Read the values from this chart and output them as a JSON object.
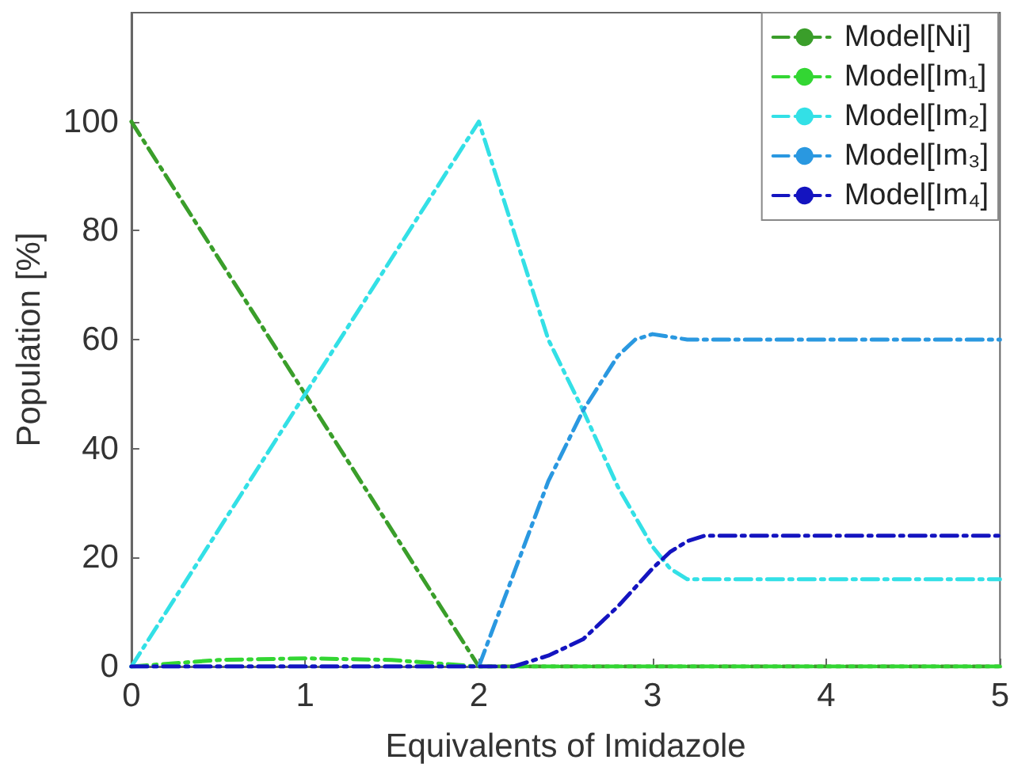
{
  "chart_data": {
    "type": "line",
    "xlabel": "Equivalents of Imidazole",
    "ylabel": "Population [%]",
    "xlim": [
      0,
      5
    ],
    "xticks": [
      0,
      1,
      2,
      3,
      4,
      5
    ],
    "ylim": [
      0,
      120
    ],
    "yticks": [
      0,
      20,
      40,
      60,
      80,
      100
    ],
    "grid": false,
    "legend": "top right",
    "line_style": "dashed",
    "marker": "none",
    "series": [
      {
        "name": "Model[Ni]",
        "color": "#3a9e2a",
        "x": [
          0,
          2,
          5
        ],
        "values": [
          100,
          0,
          0
        ]
      },
      {
        "name": "Model[Im₁]",
        "color": "#33d633",
        "x": [
          0,
          0.5,
          1,
          1.5,
          2,
          2.2,
          5
        ],
        "values": [
          0,
          1.2,
          1.5,
          1.2,
          0,
          0,
          0
        ]
      },
      {
        "name": "Model[Im₂]",
        "color": "#33e0e6",
        "x": [
          0,
          2,
          2.4,
          2.6,
          2.8,
          3,
          3.1,
          3.2,
          3.3,
          5
        ],
        "values": [
          0,
          100,
          60,
          47,
          33,
          22,
          18,
          16,
          16,
          16
        ]
      },
      {
        "name": "Model[Im₃]",
        "color": "#2a98e0",
        "x": [
          0,
          2,
          2.2,
          2.4,
          2.6,
          2.8,
          2.9,
          3,
          3.2,
          3.4,
          5
        ],
        "values": [
          0,
          0,
          17,
          34,
          47,
          57,
          60,
          61,
          60,
          60,
          60
        ]
      },
      {
        "name": "Model[Im₄]",
        "color": "#1414c0",
        "x": [
          0,
          2.2,
          2.4,
          2.6,
          2.8,
          3,
          3.1,
          3.2,
          3.3,
          5
        ],
        "values": [
          0,
          0,
          2,
          5,
          11,
          18,
          21,
          23,
          24,
          24
        ]
      }
    ]
  }
}
